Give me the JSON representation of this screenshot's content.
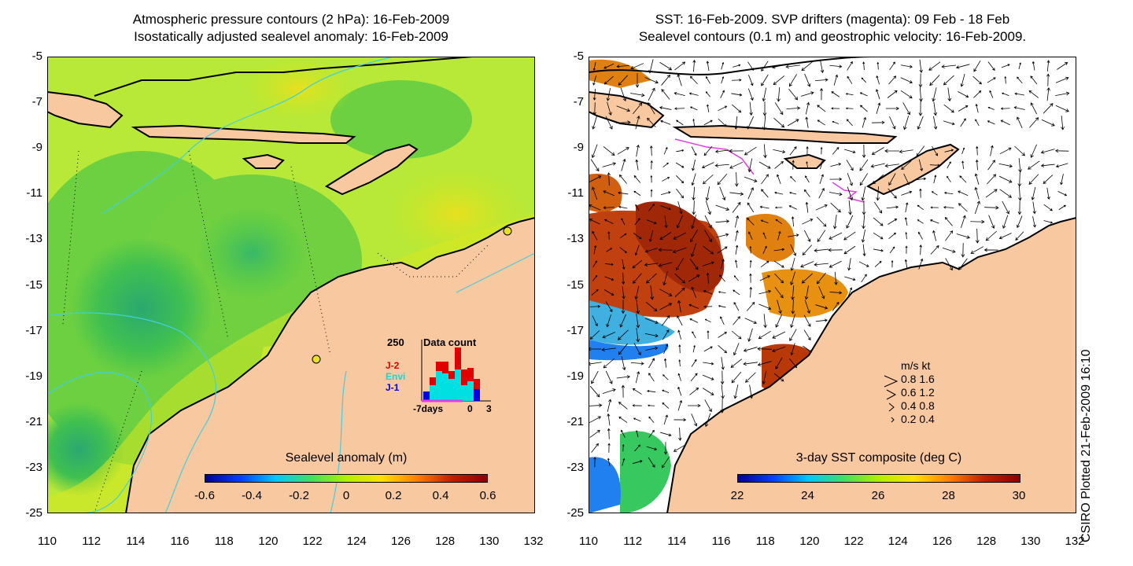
{
  "left_panel": {
    "title_line1": "Atmospheric pressure contours (2 hPa): 16-Feb-2009",
    "title_line2": "Isostatically adjusted sealevel anomaly: 16-Feb-2009",
    "colorbar": {
      "label": "Sealevel anomaly (m)",
      "ticks": [
        "-0.6",
        "-0.4",
        "-0.2",
        "0",
        "0.2",
        "0.4",
        "0.6"
      ],
      "colors": [
        "#00008f",
        "#0040ff",
        "#00c8ff",
        "#40e060",
        "#b0f000",
        "#ffe000",
        "#ff8000",
        "#c02000",
        "#8b0000"
      ]
    },
    "data_count_inset": {
      "max_label": "250",
      "title": "Data count",
      "legend": [
        {
          "name": "J-2",
          "color": "#e00000"
        },
        {
          "name": "Envi",
          "color": "#00e0e0"
        },
        {
          "name": "J-1",
          "color": "#0000e0"
        }
      ],
      "x_labels": [
        "-7days",
        "0",
        "3"
      ]
    }
  },
  "right_panel": {
    "title_line1": "SST: 16-Feb-2009. SVP drifters (magenta): 09 Feb - 18 Feb",
    "title_line2": "Sealevel contours (0.1 m) and geostrophic velocity: 16-Feb-2009.",
    "colorbar": {
      "label": "3-day SST composite (deg C)",
      "ticks": [
        "22",
        "24",
        "26",
        "28",
        "30"
      ],
      "colors": [
        "#00008f",
        "#0040ff",
        "#00c8ff",
        "#40e060",
        "#b0f000",
        "#ffe000",
        "#ff8000",
        "#c02000",
        "#8b0000"
      ]
    },
    "velocity_key": {
      "header": "m/s  kt",
      "rows": [
        "0.8  1.6",
        "0.6  1.2",
        "0.4  0.8",
        "0.2  0.4"
      ]
    }
  },
  "axes": {
    "lat_ticks": [
      "-5",
      "-7",
      "-9",
      "-11",
      "-13",
      "-15",
      "-17",
      "-19",
      "-21",
      "-23",
      "-25"
    ],
    "lon_ticks": [
      "110",
      "112",
      "114",
      "116",
      "118",
      "120",
      "122",
      "124",
      "126",
      "128",
      "130",
      "132"
    ]
  },
  "credit": "CSIRO Plotted 21-Feb-2009 16:10",
  "colors": {
    "land": "#f8c8a0",
    "coast": "#000000",
    "pressure_contour": "#40d0e0",
    "drifter": "#e040e0"
  },
  "chart_data": {
    "type": "heatmap",
    "x_range": [
      110,
      132
    ],
    "y_range": [
      -25,
      -5
    ],
    "xlabel": "",
    "ylabel": ""
  }
}
